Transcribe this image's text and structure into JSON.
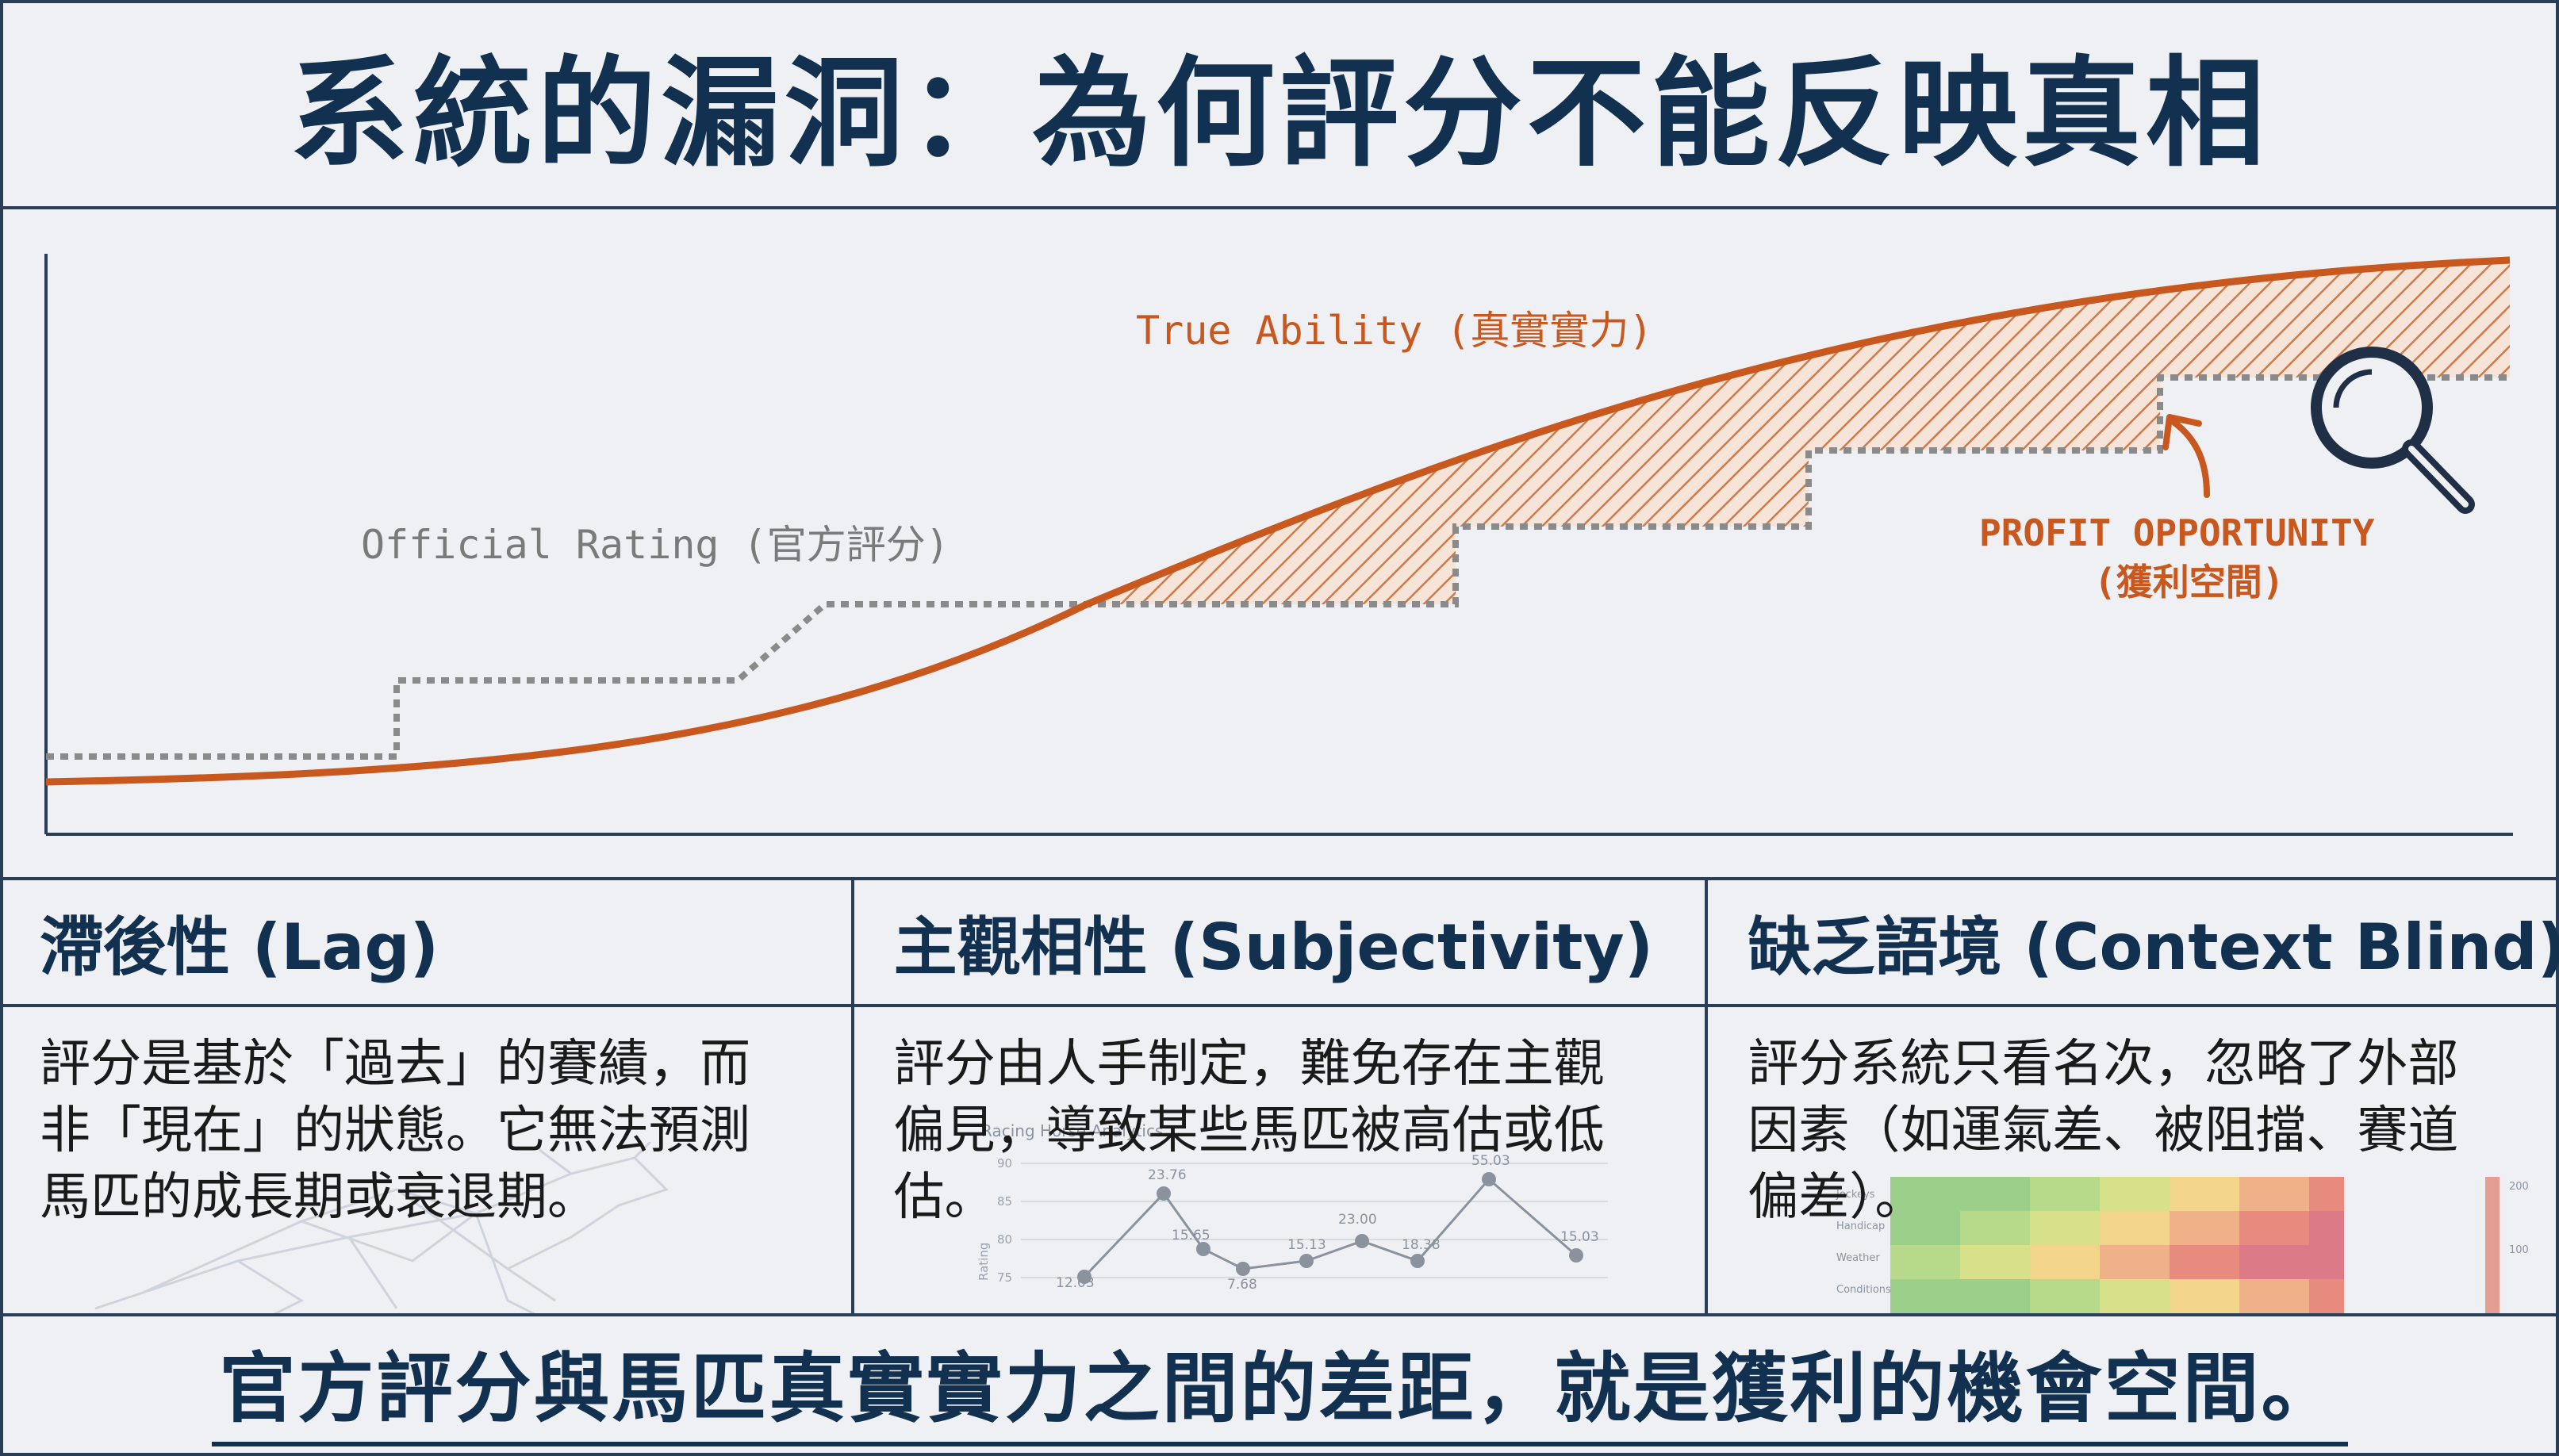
{
  "title": "系統的漏洞：為何評分不能反映真相",
  "chart": {
    "true_ability_label": "True Ability (真實實力)",
    "official_rating_label": "Official Rating (官方評分)",
    "profit_label_line1": "PROFIT OPPORTUNITY",
    "profit_label_line2": "(獲利空間)",
    "colors": {
      "true_ability": "#c8581e",
      "official_rating": "#8a8a8a",
      "profit_text": "#c8581e"
    }
  },
  "cards": [
    {
      "heading": "滯後性 (Lag)",
      "body_lines": [
        "評分是基於「過去」的賽績，而",
        "非「現在」的狀態。它無法預測",
        "馬匹的成長期或衰退期。"
      ]
    },
    {
      "heading": "主觀相性 (Subjectivity)",
      "body_lines": [
        "評分由人手制定，難免存在主觀",
        "偏見，導致某些馬匹被高估或低",
        "估。"
      ],
      "mini_chart": {
        "title": "Racing Horse Analytics",
        "axis_label": "Rating",
        "ticks": [
          "90",
          "85",
          "80",
          "75"
        ],
        "values": [
          "23.76",
          "15.65",
          "7.68",
          "15.13",
          "23.00",
          "18.38",
          "55.03",
          "15.03",
          "12.03"
        ]
      }
    },
    {
      "heading": "缺乏語境 (Context Blind)",
      "body_lines": [
        "評分系統只看名次，忽略了外部",
        "因素（如運氣差、被阻擋、賽道",
        "偏差）。"
      ],
      "heatmap": {
        "row_labels": [
          "Jockeys",
          "Handicap",
          "Weather",
          "Conditions"
        ],
        "scale_labels": [
          "200",
          "100"
        ]
      }
    }
  ],
  "footer": "官方評分與馬匹真實實力之間的差距，就是獲利的機會空間。"
}
